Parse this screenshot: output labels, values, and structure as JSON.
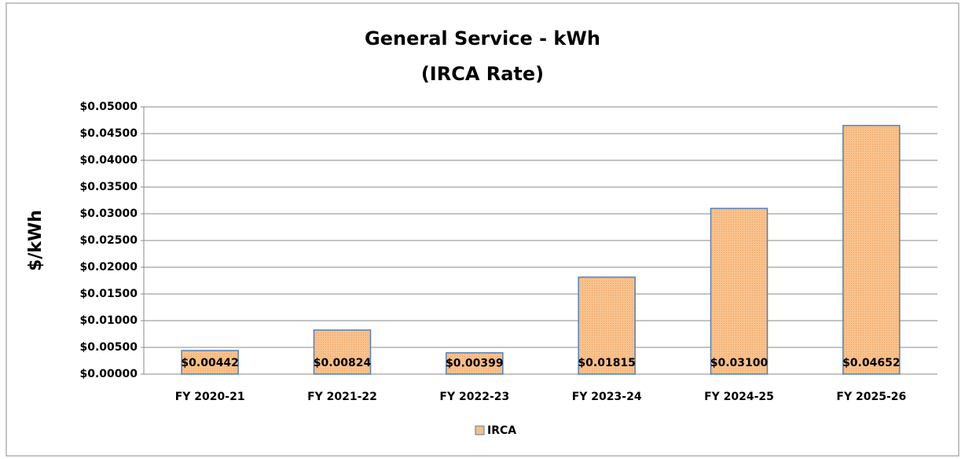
{
  "chart_data": {
    "type": "bar",
    "title": "General Service - kWh",
    "subtitle": "(IRCA Rate)",
    "y_label": "$/kWh",
    "categories": [
      "FY 2020-21",
      "FY 2021-22",
      "FY 2022-23",
      "FY 2023-24",
      "FY 2024-25",
      "FY 2025-26"
    ],
    "series": [
      {
        "name": "IRCA",
        "color": "#f9c28c",
        "edge_color": "#4f81bd",
        "values": [
          0.00442,
          0.00824,
          0.00399,
          0.01815,
          0.031,
          0.04652
        ],
        "value_labels": [
          "$0.00442",
          "$0.00824",
          "$0.00399",
          "$0.01815",
          "$0.03100",
          "$0.04652"
        ]
      }
    ],
    "ylim": [
      0,
      0.05
    ],
    "yticks": [
      {
        "value": 0,
        "label": "$0.00000"
      },
      {
        "value": 0.005,
        "label": "$0.00500"
      },
      {
        "value": 0.01,
        "label": "$0.01000"
      },
      {
        "value": 0.015,
        "label": "$0.01500"
      },
      {
        "value": 0.02,
        "label": "$0.02000"
      },
      {
        "value": 0.025,
        "label": "$0.02500"
      },
      {
        "value": 0.03,
        "label": "$0.03000"
      },
      {
        "value": 0.035,
        "label": "$0.03500"
      },
      {
        "value": 0.04,
        "label": "$0.04000"
      },
      {
        "value": 0.045,
        "label": "$0.04500"
      },
      {
        "value": 0.05,
        "label": "$0.05000"
      }
    ],
    "grid": true,
    "legend": "bottom"
  }
}
